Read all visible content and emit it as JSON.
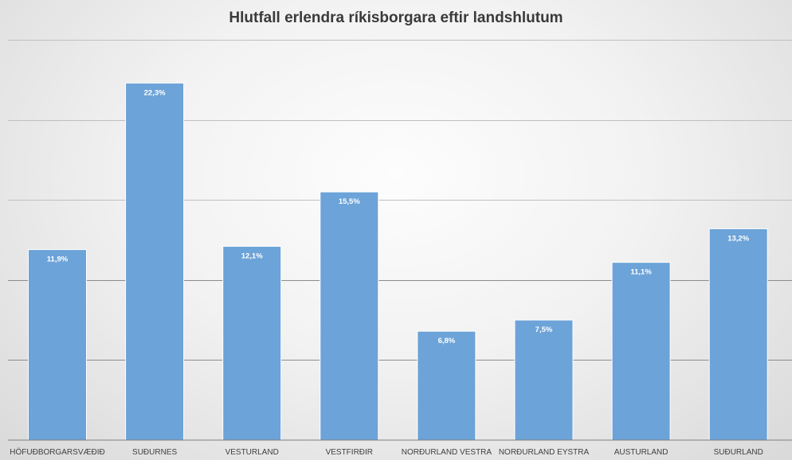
{
  "chart_data": {
    "type": "bar",
    "title": "Hlutfall erlendra ríkisborgara eftir landshlutum",
    "categories": [
      "HÖFUÐBORGARSVÆÐIÐ",
      "SUÐURNES",
      "VESTURLAND",
      "VESTFIRÐIR",
      "NORÐURLAND VESTRA",
      "NORÐURLAND EYSTRA",
      "AUSTURLAND",
      "SUÐURLAND"
    ],
    "values": [
      11.9,
      22.3,
      12.1,
      15.5,
      6.8,
      7.5,
      11.1,
      13.2
    ],
    "data_labels": [
      "11,9%",
      "22,3%",
      "12,1%",
      "15,5%",
      "6,8%",
      "7,5%",
      "11,1%",
      "13,2%"
    ],
    "ylim": [
      0,
      25
    ],
    "y_gridlines": [
      5,
      10,
      15,
      20,
      25
    ],
    "grid": true,
    "y_tick_labels_shown": false,
    "legend": "none",
    "bar_color": "#6ca3d8",
    "bar_edge_color": "#ffffff",
    "gridline_color": "#bfbfbf"
  }
}
